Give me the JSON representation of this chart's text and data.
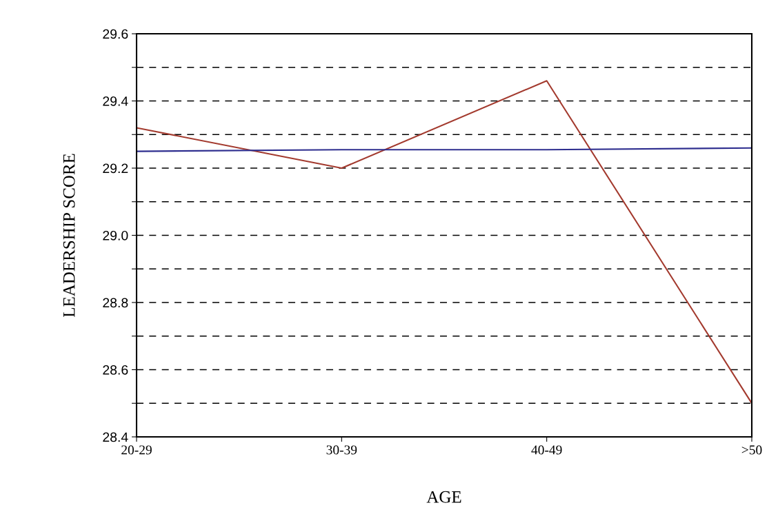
{
  "chart_data": {
    "type": "line",
    "xlabel": "AGE",
    "ylabel": "LEADERSHIP SCORE",
    "categories": [
      "20-29",
      "30-39",
      "40-49",
      ">50"
    ],
    "series": [
      {
        "color": "#a33a2e",
        "values": [
          29.32,
          29.2,
          29.46,
          28.5
        ]
      },
      {
        "color": "#2e2e8f",
        "values": [
          29.25,
          29.255,
          29.255,
          29.26
        ]
      }
    ],
    "ylim": [
      28.4,
      29.6
    ],
    "yticks": [
      28.4,
      {
        "value": 28.5,
        "label": null
      },
      28.6,
      {
        "value": 28.7,
        "label": null
      },
      28.8,
      {
        "value": 28.9,
        "label": null
      },
      {
        "value": 29.0,
        "label": "29.0"
      },
      {
        "value": 29.1,
        "label": null
      },
      29.2,
      {
        "value": 29.3,
        "label": null
      },
      29.4,
      {
        "value": 29.5,
        "label": null
      },
      29.6
    ],
    "grid": "y",
    "line_style": "solid",
    "marker": "none"
  }
}
